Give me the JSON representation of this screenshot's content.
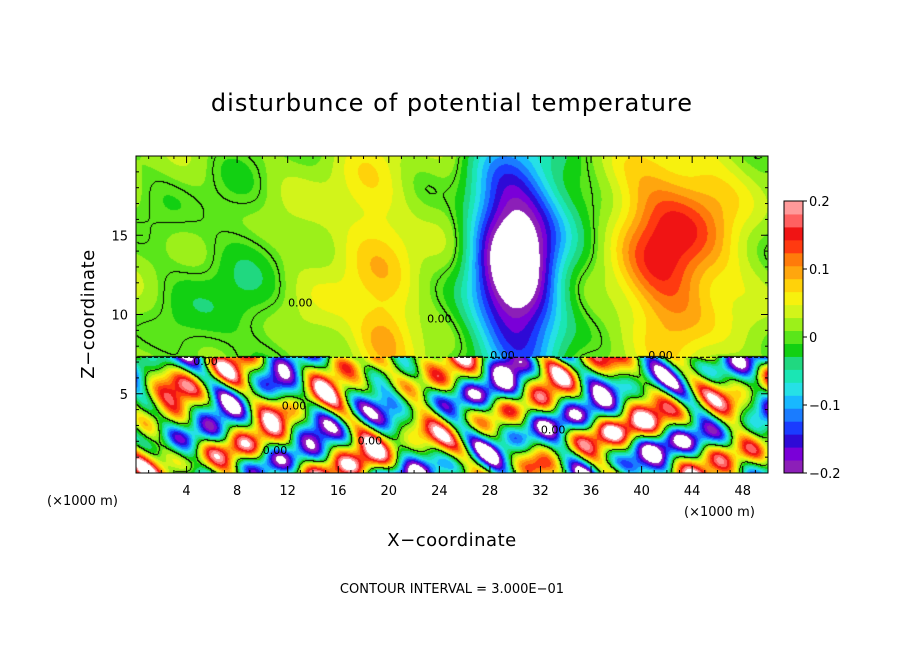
{
  "chart_data": {
    "type": "heatmap",
    "title": "disturbunce of potential temperature",
    "xlabel": "X−coordinate",
    "ylabel": "Z−coordinate",
    "x_unit_left": "(×1000 m)",
    "x_unit_right": "(×1000 m)",
    "xlim": [
      0,
      50
    ],
    "ylim": [
      0,
      20
    ],
    "x_ticks": [
      "4",
      "8",
      "12",
      "16",
      "20",
      "24",
      "28",
      "32",
      "36",
      "40",
      "44",
      "48"
    ],
    "x_tick_values": [
      4,
      8,
      12,
      16,
      20,
      24,
      28,
      32,
      36,
      40,
      44,
      48
    ],
    "y_ticks": [
      "5",
      "10",
      "15"
    ],
    "y_tick_values": [
      5,
      10,
      15
    ],
    "contour_interval_text": "CONTOUR INTERVAL = 3.000E−01",
    "contour_labels": [
      "0.00",
      "0.00",
      "0.00",
      "0.00",
      "0.00",
      "0.00",
      "0.00",
      "0.00",
      "0.00"
    ],
    "colorbar": {
      "min": -0.2,
      "max": 0.2,
      "tick_labels": [
        "0.2",
        "0.1",
        "0",
        "−0.1",
        "−0.2"
      ],
      "tick_values": [
        0.2,
        0.1,
        0,
        -0.1,
        -0.2
      ],
      "colors": [
        "#8c1fb8",
        "#7a00d8",
        "#2e0ad6",
        "#1a3cff",
        "#1a7cff",
        "#18b8ff",
        "#26e0e6",
        "#1ae6b4",
        "#20d880",
        "#12d012",
        "#5ae61a",
        "#9cf01a",
        "#d2f41a",
        "#f7f10e",
        "#ffd20a",
        "#ffa60e",
        "#ff7b0a",
        "#ff3a10",
        "#f01414",
        "#ff6060",
        "#ff9a9a"
      ]
    },
    "upper_layer_boundary_z": 7.3,
    "features": [
      {
        "x": 30,
        "z": 12.5,
        "sign": "negative",
        "amplitude": -0.2
      },
      {
        "x": 42.5,
        "z": 12.5,
        "sign": "positive",
        "amplitude": 0.1
      },
      {
        "x": 18,
        "z": 14,
        "sign": "positive",
        "amplitude": 0.05
      },
      {
        "x": 6,
        "z": 11,
        "sign": "negative",
        "amplitude": -0.02
      }
    ]
  }
}
